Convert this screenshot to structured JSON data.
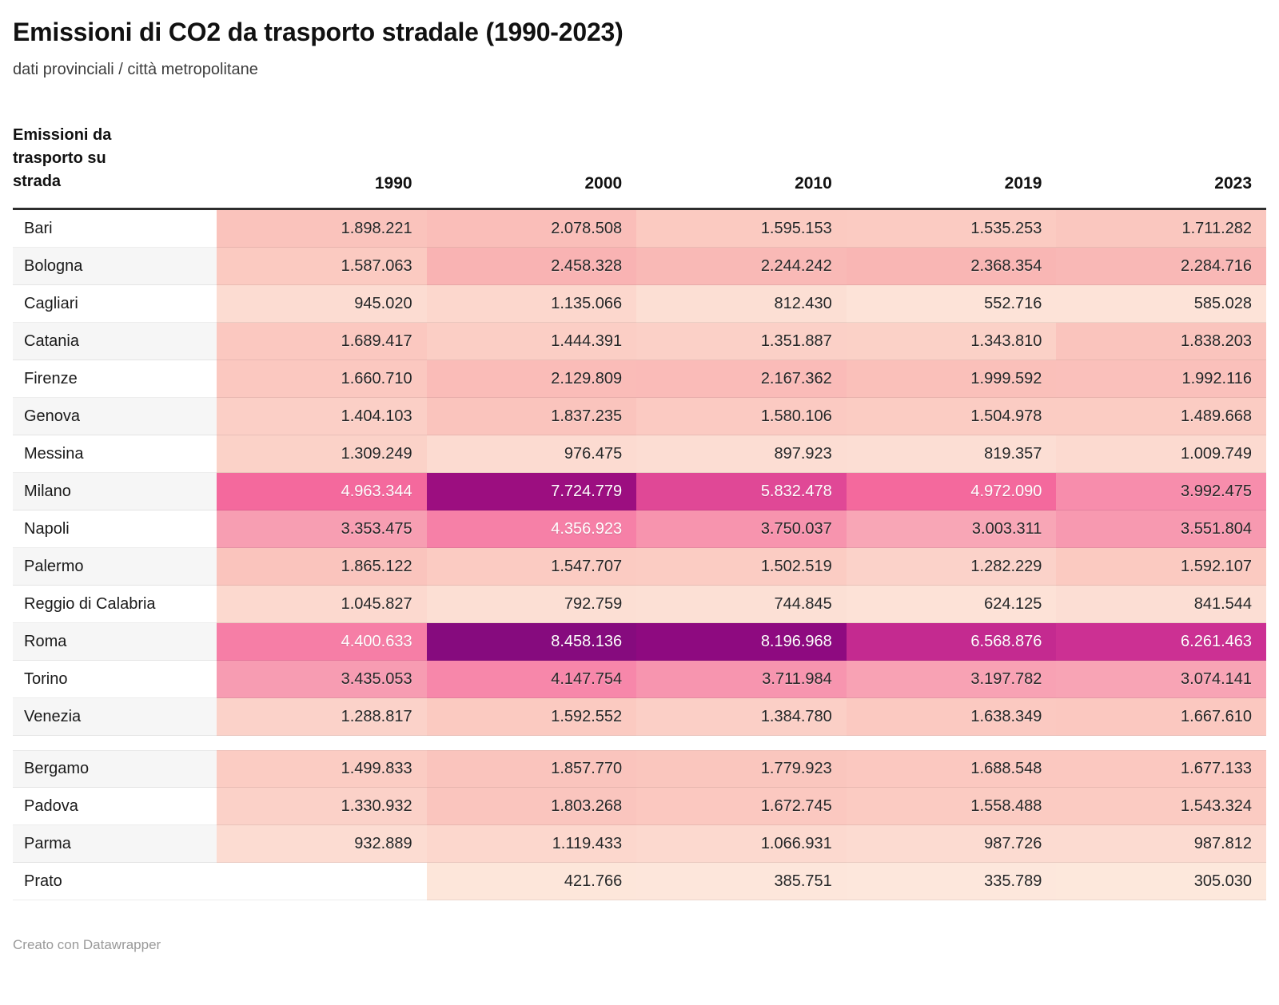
{
  "chart_data": {
    "type": "table",
    "title": "Emissioni di CO2 da trasporto stradale (1990-2023)",
    "subtitle": "dati provinciali / città metropolitane",
    "corner_label": "Emissioni da trasporto su strada",
    "columns": [
      "1990",
      "2000",
      "2010",
      "2019",
      "2023"
    ],
    "groups": [
      {
        "rows": [
          {
            "name": "Bari",
            "values": [
              1898221,
              2078508,
              1595153,
              1535253,
              1711282
            ]
          },
          {
            "name": "Bologna",
            "values": [
              1587063,
              2458328,
              2244242,
              2368354,
              2284716
            ]
          },
          {
            "name": "Cagliari",
            "values": [
              945020,
              1135066,
              812430,
              552716,
              585028
            ]
          },
          {
            "name": "Catania",
            "values": [
              1689417,
              1444391,
              1351887,
              1343810,
              1838203
            ]
          },
          {
            "name": "Firenze",
            "values": [
              1660710,
              2129809,
              2167362,
              1999592,
              1992116
            ]
          },
          {
            "name": "Genova",
            "values": [
              1404103,
              1837235,
              1580106,
              1504978,
              1489668
            ]
          },
          {
            "name": "Messina",
            "values": [
              1309249,
              976475,
              897923,
              819357,
              1009749
            ]
          },
          {
            "name": "Milano",
            "values": [
              4963344,
              7724779,
              5832478,
              4972090,
              3992475
            ]
          },
          {
            "name": "Napoli",
            "values": [
              3353475,
              4356923,
              3750037,
              3003311,
              3551804
            ]
          },
          {
            "name": "Palermo",
            "values": [
              1865122,
              1547707,
              1502519,
              1282229,
              1592107
            ]
          },
          {
            "name": "Reggio di Calabria",
            "values": [
              1045827,
              792759,
              744845,
              624125,
              841544
            ]
          },
          {
            "name": "Roma",
            "values": [
              4400633,
              8458136,
              8196968,
              6568876,
              6261463
            ]
          },
          {
            "name": "Torino",
            "values": [
              3435053,
              4147754,
              3711984,
              3197782,
              3074141
            ]
          },
          {
            "name": "Venezia",
            "values": [
              1288817,
              1592552,
              1384780,
              1638349,
              1667610
            ]
          }
        ]
      },
      {
        "rows": [
          {
            "name": "Bergamo",
            "values": [
              1499833,
              1857770,
              1779923,
              1688548,
              1677133
            ]
          },
          {
            "name": "Padova",
            "values": [
              1330932,
              1803268,
              1672745,
              1558488,
              1543324
            ]
          },
          {
            "name": "Parma",
            "values": [
              932889,
              1119433,
              1066931,
              987726,
              987812
            ]
          },
          {
            "name": "Prato",
            "values": [
              null,
              421766,
              385751,
              335789,
              305030
            ]
          }
        ]
      }
    ],
    "color_scale": {
      "domain": [
        305030,
        8458136
      ],
      "stops": [
        [
          305030,
          "#fde8dc"
        ],
        [
          950000,
          "#fcdcd2"
        ],
        [
          1500000,
          "#fbccc3"
        ],
        [
          1900000,
          "#fac3bc"
        ],
        [
          2460000,
          "#f9b3b3"
        ],
        [
          3000000,
          "#f8a6b6"
        ],
        [
          3400000,
          "#f79db2"
        ],
        [
          4000000,
          "#f78dac"
        ],
        [
          4400000,
          "#f67ea6"
        ],
        [
          4970000,
          "#f4699d"
        ],
        [
          5830000,
          "#e04896"
        ],
        [
          6260000,
          "#cc3093"
        ],
        [
          6570000,
          "#c42a90"
        ],
        [
          7720000,
          "#9c0e80"
        ],
        [
          8200000,
          "#8e0a80"
        ],
        [
          8458136,
          "#860b7e"
        ]
      ],
      "white_text_threshold": 4300000
    },
    "number_format": {
      "thousands_separator": "."
    },
    "footer": "Creato con Datawrapper"
  }
}
